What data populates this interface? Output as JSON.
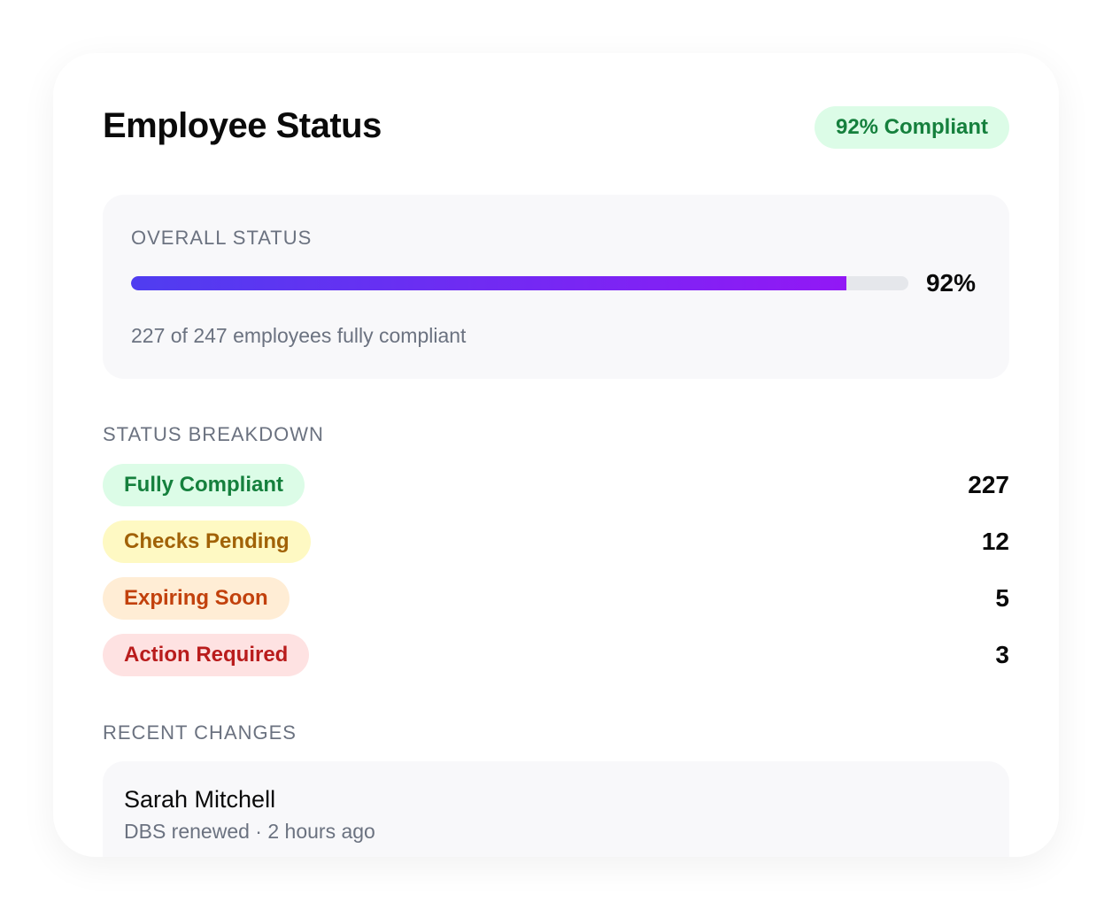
{
  "header": {
    "title": "Employee Status",
    "badge": "92% Compliant"
  },
  "overall": {
    "label": "OVERALL STATUS",
    "progress_percent": 92,
    "percent_label": "92%",
    "summary": "227 of 247 employees fully compliant"
  },
  "breakdown": {
    "label": "STATUS BREAKDOWN",
    "items": [
      {
        "label": "Fully Compliant",
        "count": "227",
        "bg": "#dcfce7",
        "color": "#15803d"
      },
      {
        "label": "Checks Pending",
        "count": "12",
        "bg": "#fef9c3",
        "color": "#a16207"
      },
      {
        "label": "Expiring Soon",
        "count": "5",
        "bg": "#ffedd5",
        "color": "#c2410c"
      },
      {
        "label": "Action Required",
        "count": "3",
        "bg": "#fee2e2",
        "color": "#b91c1c"
      }
    ]
  },
  "recent": {
    "label": "RECENT CHANGES",
    "items": [
      {
        "name": "Sarah Mitchell",
        "detail": "DBS renewed · 2 hours ago"
      }
    ]
  }
}
